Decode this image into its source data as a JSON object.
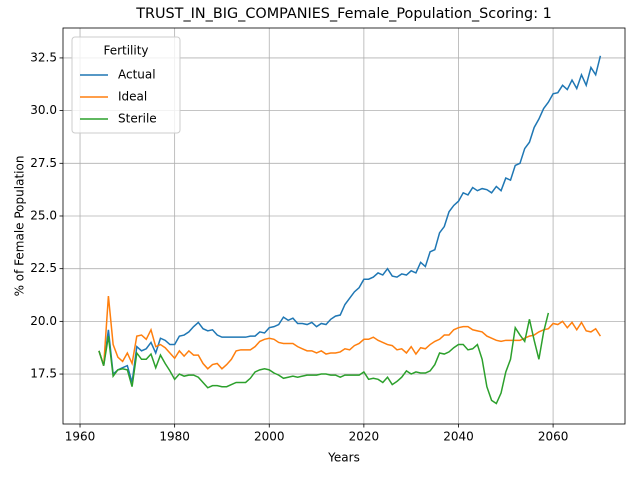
{
  "chart_data": {
    "type": "line",
    "title": "TRUST_IN_BIG_COMPANIES_Female_Population_Scoring: 1",
    "x_label": "Years",
    "y_label": "% of Female Population",
    "x": [
      1964,
      1965,
      1966,
      1967,
      1968,
      1969,
      1970,
      1971,
      1972,
      1973,
      1974,
      1975,
      1976,
      1977,
      1978,
      1979,
      1980,
      1981,
      1982,
      1983,
      1984,
      1985,
      1986,
      1987,
      1988,
      1989,
      1990,
      1991,
      1992,
      1993,
      1994,
      1995,
      1996,
      1997,
      1998,
      1999,
      2000,
      2001,
      2002,
      2003,
      2004,
      2005,
      2006,
      2007,
      2008,
      2009,
      2010,
      2011,
      2012,
      2013,
      2014,
      2015,
      2016,
      2017,
      2018,
      2019,
      2020,
      2021,
      2022,
      2023,
      2024,
      2025,
      2026,
      2027,
      2028,
      2029,
      2030,
      2031,
      2032,
      2033,
      2034,
      2035,
      2036,
      2037,
      2038,
      2039,
      2040,
      2041,
      2042,
      2043,
      2044,
      2045,
      2046,
      2047,
      2048,
      2049,
      2050,
      2051,
      2052,
      2053,
      2054,
      2055,
      2056,
      2057,
      2058,
      2059,
      2060,
      2061,
      2062,
      2063,
      2064,
      2065,
      2066,
      2067,
      2068,
      2069,
      2070
    ],
    "series": [
      {
        "name": "Actual",
        "color": "#1f77b4",
        "values": [
          18.6,
          17.9,
          19.6,
          17.5,
          17.7,
          17.8,
          17.9,
          17.1,
          18.8,
          18.6,
          18.7,
          19.0,
          18.5,
          19.2,
          19.1,
          18.9,
          18.9,
          19.3,
          19.35,
          19.5,
          19.75,
          19.95,
          19.65,
          19.55,
          19.6,
          19.35,
          19.25,
          19.25,
          19.25,
          19.25,
          19.25,
          19.25,
          19.3,
          19.3,
          19.5,
          19.45,
          19.7,
          19.75,
          19.85,
          20.2,
          20.05,
          20.15,
          19.9,
          19.9,
          19.85,
          19.95,
          19.75,
          19.9,
          19.85,
          20.1,
          20.25,
          20.3,
          20.8,
          21.1,
          21.4,
          21.6,
          22.0,
          22.0,
          22.1,
          22.3,
          22.2,
          22.5,
          22.15,
          22.1,
          22.25,
          22.2,
          22.4,
          22.3,
          22.8,
          22.6,
          23.3,
          23.4,
          24.2,
          24.5,
          25.2,
          25.5,
          25.7,
          26.1,
          26.0,
          26.35,
          26.2,
          26.3,
          26.25,
          26.1,
          26.4,
          26.2,
          26.8,
          26.7,
          27.4,
          27.5,
          28.2,
          28.5,
          29.2,
          29.6,
          30.1,
          30.4,
          30.8,
          30.85,
          31.2,
          31.0,
          31.45,
          31.05,
          31.7,
          31.2,
          32.05,
          31.7,
          32.6
        ]
      },
      {
        "name": "Ideal",
        "color": "#ff7f0e",
        "values": [
          18.6,
          17.9,
          21.2,
          18.9,
          18.3,
          18.1,
          18.5,
          18.0,
          19.3,
          19.35,
          19.15,
          19.6,
          18.8,
          18.9,
          18.75,
          18.5,
          18.25,
          18.6,
          18.35,
          18.6,
          18.4,
          18.4,
          18.0,
          17.75,
          17.95,
          18.0,
          17.75,
          17.95,
          18.2,
          18.6,
          18.65,
          18.65,
          18.65,
          18.8,
          19.05,
          19.15,
          19.2,
          19.15,
          19.0,
          18.95,
          18.95,
          18.95,
          18.8,
          18.7,
          18.6,
          18.6,
          18.5,
          18.6,
          18.45,
          18.5,
          18.5,
          18.55,
          18.7,
          18.65,
          18.85,
          18.95,
          19.15,
          19.15,
          19.25,
          19.1,
          19.0,
          18.9,
          18.85,
          18.65,
          18.7,
          18.5,
          18.8,
          18.45,
          18.75,
          18.7,
          18.9,
          19.05,
          19.15,
          19.35,
          19.35,
          19.6,
          19.7,
          19.75,
          19.75,
          19.6,
          19.55,
          19.5,
          19.3,
          19.2,
          19.1,
          19.05,
          19.1,
          19.1,
          19.1,
          19.1,
          19.2,
          19.3,
          19.35,
          19.5,
          19.6,
          19.65,
          19.9,
          19.85,
          20.0,
          19.7,
          19.95,
          19.6,
          19.95,
          19.55,
          19.5,
          19.65,
          19.3
        ]
      },
      {
        "name": "Sterile",
        "color": "#2ca02c",
        "values": [
          18.6,
          17.9,
          19.3,
          17.4,
          17.7,
          17.75,
          17.7,
          16.9,
          18.5,
          18.2,
          18.2,
          18.45,
          17.8,
          18.4,
          18.0,
          17.65,
          17.25,
          17.5,
          17.4,
          17.45,
          17.45,
          17.35,
          17.1,
          16.85,
          16.95,
          16.95,
          16.9,
          16.9,
          17.0,
          17.1,
          17.1,
          17.1,
          17.3,
          17.6,
          17.7,
          17.75,
          17.7,
          17.55,
          17.45,
          17.3,
          17.35,
          17.4,
          17.35,
          17.4,
          17.45,
          17.45,
          17.45,
          17.5,
          17.5,
          17.45,
          17.45,
          17.35,
          17.45,
          17.45,
          17.45,
          17.45,
          17.6,
          17.25,
          17.3,
          17.25,
          17.1,
          17.35,
          17.0,
          17.15,
          17.35,
          17.65,
          17.5,
          17.6,
          17.55,
          17.55,
          17.65,
          17.95,
          18.5,
          18.45,
          18.55,
          18.75,
          18.9,
          18.9,
          18.65,
          18.7,
          18.9,
          18.2,
          16.9,
          16.25,
          16.1,
          16.6,
          17.6,
          18.2,
          19.7,
          19.35,
          19.05,
          20.1,
          19.1,
          18.2,
          19.5,
          20.4,
          null,
          null,
          null,
          null,
          null,
          null,
          null,
          null,
          null,
          null,
          null
        ]
      }
    ],
    "xlim": [
      1956.4,
      2075.2
    ],
    "ylim": [
      15.13,
      33.92
    ],
    "xticks": [
      1960,
      1980,
      2000,
      2020,
      2040,
      2060
    ],
    "yticks": [
      17.5,
      {
        "value": 20.0,
        "label": "20.0"
      },
      22.5,
      {
        "value": 25.0,
        "label": "25.0"
      },
      27.5,
      {
        "value": 30.0,
        "label": "30.0"
      },
      32.5
    ],
    "grid": true,
    "legend_title": "Fertility",
    "legend": "upper left"
  }
}
